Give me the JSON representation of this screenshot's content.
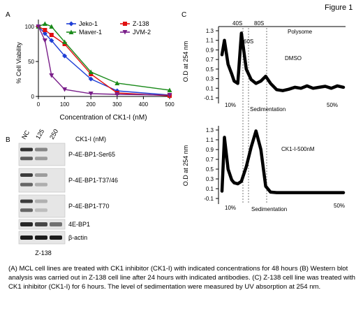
{
  "figure_label": "Figure 1",
  "panels": {
    "a": {
      "label": "A",
      "ylabel": "% Cell Viability",
      "xlabel": "Concentration of CK1-I (nM)",
      "y_ticks": [
        "0",
        "50",
        "100"
      ],
      "x_ticks": [
        "0",
        "100",
        "200",
        "300",
        "400",
        "500"
      ]
    },
    "b": {
      "label": "B",
      "lanes": [
        "NC",
        "125",
        "250"
      ],
      "treatment_label": "CK1-I (nM)",
      "rows": [
        "P-4E-BP1-Ser65",
        "P-4E-BP1-T37/46",
        "P-4E-BP1-T70",
        "4E-BP1",
        "β-actin"
      ],
      "cell_line": "Z-138",
      "band_intensity": [
        [
          0.85,
          0.45,
          0.0
        ],
        [
          0.8,
          0.35,
          0.0
        ],
        [
          0.8,
          0.25,
          0.0
        ],
        [
          0.9,
          0.75,
          0.55
        ],
        [
          0.95,
          0.95,
          0.95
        ]
      ]
    },
    "c": {
      "label": "C",
      "ylabel": "O.D at 254 nm",
      "y_ticks": [
        "1.3",
        "1.1",
        "0.9",
        "0.7",
        "0.5",
        "0.3",
        "0.1",
        "-0.1"
      ],
      "peaks": [
        "40S",
        "60S",
        "80S"
      ],
      "polysome_label": "Polysome",
      "top_condition": "DMSO",
      "bottom_condition": "CK1-I-500nM",
      "x_start": "10%",
      "x_end": "50%",
      "xlabel": "Sedimentation"
    }
  },
  "caption": "(A) MCL cell lines are treated with CK1 inhibitor (CK1-I) with indicated concentrations for 48 hours (B) Western blot analysis was carried out in Z-138 cell line after 24 hours with indicated antibodies. (C) Z-138 cell line was treated with CK1 inhibitor (CK1-I) for 6 hours. The level of sedimentation were measured by UV absorption at 254 nm.",
  "chart_data": [
    {
      "type": "line",
      "x": [
        0,
        25,
        50,
        100,
        200,
        300,
        500
      ],
      "series": [
        {
          "name": "Jeko-1",
          "color": "#1f3fd6",
          "marker": "diamond",
          "values": [
            100,
            90,
            80,
            58,
            25,
            8,
            2
          ]
        },
        {
          "name": "Z-138",
          "color": "#e01010",
          "marker": "square",
          "values": [
            100,
            95,
            88,
            75,
            32,
            5,
            1
          ]
        },
        {
          "name": "Maver-1",
          "color": "#1a8a1a",
          "marker": "triangle",
          "values": [
            100,
            104,
            100,
            78,
            35,
            19,
            9
          ]
        },
        {
          "name": "JVM-2",
          "color": "#7a1f8a",
          "marker": "triangle-down",
          "values": [
            100,
            80,
            30,
            10,
            4,
            3,
            2
          ]
        }
      ],
      "xlabel": "Concentration of CK1-I (nM)",
      "ylabel": "% Cell Viability",
      "xlim": [
        0,
        500
      ],
      "ylim": [
        0,
        110
      ],
      "legend": "top-right"
    },
    {
      "type": "line",
      "x": [
        0,
        0.02,
        0.05,
        0.08,
        0.1,
        0.13,
        0.16,
        0.2,
        0.24,
        0.28,
        0.32,
        0.36,
        0.4,
        0.45,
        0.5,
        0.55,
        0.6,
        0.65,
        0.7,
        0.75,
        0.8,
        0.85,
        0.9,
        0.95,
        1.0
      ],
      "series": [
        {
          "name": "DMSO",
          "values": [
            0.8,
            1.1,
            0.6,
            0.4,
            0.25,
            0.2,
            1.25,
            0.5,
            0.28,
            0.2,
            0.25,
            0.35,
            0.2,
            0.07,
            0.05,
            0.08,
            0.12,
            0.1,
            0.15,
            0.1,
            0.12,
            0.14,
            0.1,
            0.15,
            0.12
          ]
        },
        {
          "name": "CK1-I-500nM",
          "values": [
            0.05,
            1.15,
            0.5,
            0.28,
            0.22,
            0.2,
            0.25,
            0.55,
            0.95,
            1.28,
            0.9,
            0.15,
            0.03,
            0.02,
            0.02,
            0.02,
            0.02,
            0.02,
            0.02,
            0.02,
            0.02,
            0.02,
            0.02,
            0.02,
            0.02
          ]
        }
      ],
      "xlabel": "Sedimentation",
      "ylabel": "O.D at 254 nm",
      "ylim": [
        -0.1,
        1.3
      ]
    }
  ]
}
